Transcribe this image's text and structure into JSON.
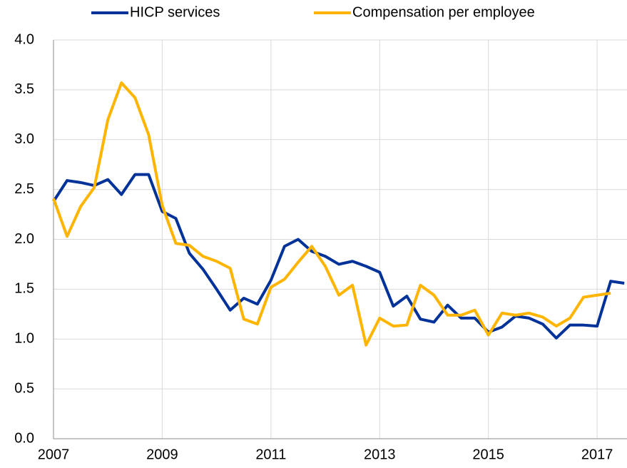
{
  "chart_data": {
    "type": "line",
    "x": [
      2007,
      2007.25,
      2007.5,
      2007.75,
      2008,
      2008.25,
      2008.5,
      2008.75,
      2009,
      2009.25,
      2009.5,
      2009.75,
      2010,
      2010.25,
      2010.5,
      2010.75,
      2011,
      2011.25,
      2011.5,
      2011.75,
      2012,
      2012.25,
      2012.5,
      2012.75,
      2013,
      2013.25,
      2013.5,
      2013.75,
      2014,
      2014.25,
      2014.5,
      2014.75,
      2015,
      2015.25,
      2015.5,
      2015.75,
      2016,
      2016.25,
      2016.5,
      2016.75,
      2017,
      2017.25,
      2017.5
    ],
    "series": [
      {
        "name": "HICP services",
        "color": "#003299",
        "values": [
          2.38,
          2.59,
          2.57,
          2.54,
          2.6,
          2.45,
          2.65,
          2.65,
          2.28,
          2.21,
          1.86,
          1.7,
          1.5,
          1.29,
          1.41,
          1.35,
          1.59,
          1.93,
          2.0,
          1.88,
          1.83,
          1.75,
          1.78,
          1.73,
          1.67,
          1.33,
          1.43,
          1.2,
          1.17,
          1.34,
          1.21,
          1.21,
          1.07,
          1.12,
          1.23,
          1.21,
          1.15,
          1.01,
          1.14,
          1.14,
          1.13,
          1.58,
          1.56
        ]
      },
      {
        "name": "Compensation per employee",
        "color": "#ffb400",
        "values": [
          2.41,
          2.03,
          2.33,
          2.52,
          3.2,
          3.57,
          3.42,
          3.05,
          2.34,
          1.96,
          1.94,
          1.83,
          1.78,
          1.71,
          1.2,
          1.15,
          1.52,
          1.6,
          1.77,
          1.93,
          1.73,
          1.44,
          1.54,
          0.94,
          1.21,
          1.13,
          1.14,
          1.54,
          1.44,
          1.24,
          1.24,
          1.29,
          1.04,
          1.26,
          1.24,
          1.26,
          1.22,
          1.13,
          1.21,
          1.42,
          1.44,
          1.46,
          null
        ]
      }
    ],
    "xlim": [
      2007,
      2017.55
    ],
    "xticks": [
      2007,
      2009,
      2011,
      2013,
      2015,
      2017
    ],
    "ylim": [
      0,
      4
    ],
    "yticks": [
      {
        "value": 0,
        "label": "0.0"
      },
      {
        "value": 0.5,
        "label": "0.5"
      },
      {
        "value": 1,
        "label": "1.0"
      },
      {
        "value": 1.5,
        "label": "1.5"
      },
      {
        "value": 2,
        "label": "2.0"
      },
      {
        "value": 2.5,
        "label": "2.5"
      },
      {
        "value": 3,
        "label": "3.0"
      },
      {
        "value": 3.5,
        "label": "3.5"
      },
      {
        "value": 4,
        "label": "4.0"
      }
    ],
    "grid": true
  }
}
